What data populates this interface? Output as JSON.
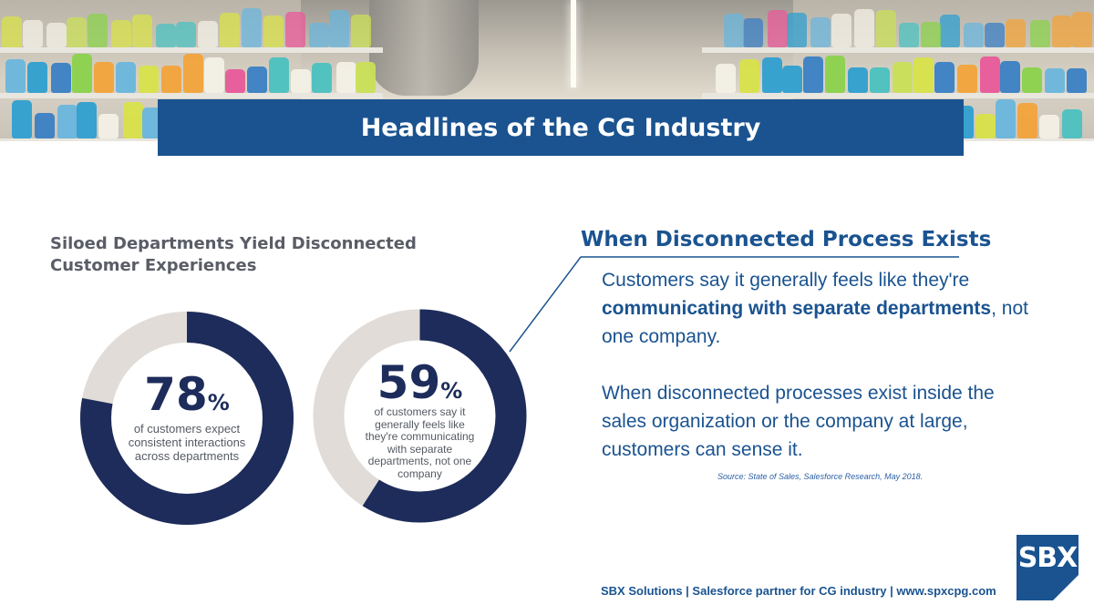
{
  "banner": {
    "title": "Headlines of the CG Industry"
  },
  "left": {
    "title_line1": "Siloed Departments Yield Disconnected",
    "title_line2": "Customer Experiences"
  },
  "stats": [
    {
      "value": "78",
      "percent_symbol": "%",
      "fraction": 0.78,
      "caption_lines": [
        "of customers expect",
        "consistent interactions",
        "across departments"
      ]
    },
    {
      "value": "59",
      "percent_symbol": "%",
      "fraction": 0.59,
      "caption_lines": [
        "of customers say it",
        "generally feels like",
        "they're communicating",
        "with separate",
        "departments, not one",
        "company"
      ]
    }
  ],
  "colors": {
    "ring_fill": "#1d2c5a",
    "ring_track": "#e1dcd7",
    "brand_blue": "#1a5390"
  },
  "right": {
    "heading": "When Disconnected Process Exists",
    "para1_start": "Customers say it generally feels like they're ",
    "para1_bold": "communicating with separate departments",
    "para1_end": ", not one company.",
    "para2": "When disconnected processes exist inside the sales organization or the company at large, customers can sense it.",
    "source": "Source: State of Sales, Salesforce Research, May 2018."
  },
  "footer": {
    "text": "SBX Solutions | Salesforce partner for CG industry | www.spxcpg.com"
  },
  "logo": {
    "text": "SBX"
  }
}
